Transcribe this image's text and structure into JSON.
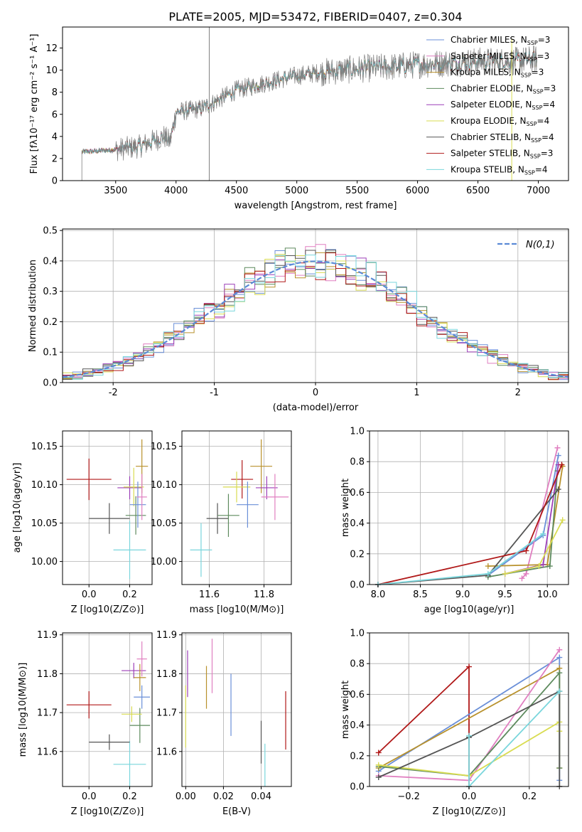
{
  "figure_title": "PLATE=2005, MJD=53472, FIBERID=0407, z=0.304",
  "series": [
    {
      "name": "Chabrier MILES",
      "nssp": "3",
      "color": "#6a8fd8"
    },
    {
      "name": "Salpeter MILES",
      "nssp": "3",
      "color": "#e07fc0"
    },
    {
      "name": "Kroupa MILES",
      "nssp": "3",
      "color": "#b8912c"
    },
    {
      "name": "Chabrier ELODIE",
      "nssp": "3",
      "color": "#5d8a5d"
    },
    {
      "name": "Salpeter ELODIE",
      "nssp": "4",
      "color": "#9c3fb8"
    },
    {
      "name": "Kroupa ELODIE",
      "nssp": "4",
      "color": "#d9dc52"
    },
    {
      "name": "Chabrier STELIB",
      "nssp": "4",
      "color": "#555555"
    },
    {
      "name": "Salpeter STELIB",
      "nssp": "3",
      "color": "#b01818"
    },
    {
      "name": "Kroupa STELIB",
      "nssp": "4",
      "color": "#7ad6dc"
    }
  ],
  "chart_data": [
    {
      "id": "spectrum",
      "type": "line",
      "xlabel": "wavelength [Angstrom, rest frame]",
      "ylabel": "Flux [fλ10⁻¹⁷ erg cm⁻² s⁻¹ A⁻¹]",
      "xlim": [
        3060,
        7250
      ],
      "ylim": [
        0,
        13.9
      ],
      "xticks": [
        3500,
        4000,
        4500,
        5000,
        5500,
        6000,
        6500,
        7000
      ],
      "yticks": [
        0,
        2,
        4,
        6,
        8,
        10,
        12
      ],
      "grid": false,
      "legend": "right",
      "x_range_data": [
        3220,
        6990
      ],
      "continuum": [
        [
          3220,
          2.6
        ],
        [
          3500,
          2.8
        ],
        [
          3700,
          3.1
        ],
        [
          3900,
          4.0
        ],
        [
          3950,
          3.5
        ],
        [
          4000,
          6.2
        ],
        [
          4200,
          6.5
        ],
        [
          4300,
          7.0
        ],
        [
          4500,
          8.2
        ],
        [
          4800,
          9.0
        ],
        [
          5000,
          9.5
        ],
        [
          5200,
          9.8
        ],
        [
          5500,
          10.1
        ],
        [
          5800,
          10.3
        ],
        [
          6000,
          10.5
        ],
        [
          6500,
          10.8
        ],
        [
          6800,
          10.8
        ],
        [
          6990,
          11.0
        ]
      ],
      "spikes": [
        [
          4275,
          13.9
        ],
        [
          6780,
          12.8
        ],
        [
          6790,
          0
        ]
      ]
    },
    {
      "id": "residuals",
      "type": "bar",
      "xlabel": "(data-model)/error",
      "ylabel": "Normed distribution",
      "xlim": [
        -2.5,
        2.5
      ],
      "ylim": [
        0,
        0.505
      ],
      "xticks": [
        -2,
        -1,
        0,
        1,
        2
      ],
      "yticks": [
        0,
        0.1,
        0.2,
        0.3,
        0.4,
        0.5
      ],
      "grid": true,
      "legend": "top-right",
      "legend_label": "N(0,1)",
      "bin_width": 0.1
    },
    {
      "id": "age_vs_Z",
      "type": "scatter",
      "xlabel": "Z [log10(Z/Z⊙)]",
      "ylabel": "age  [log10(age/yr)]",
      "xlim": [
        -0.13,
        0.31
      ],
      "ylim": [
        9.97,
        10.17
      ],
      "xticks": [
        0.0,
        0.2
      ],
      "yticks": [
        10.0,
        10.05,
        10.1,
        10.15
      ],
      "points": [
        {
          "s": 7,
          "x": 0.0,
          "y": 10.107,
          "xe": 0.11,
          "ye": 0.027
        },
        {
          "s": 8,
          "x": 0.2,
          "y": 10.015,
          "xe": 0.08,
          "ye": 0.038
        },
        {
          "s": 6,
          "x": 0.1,
          "y": 10.056,
          "xe": 0.1,
          "ye": 0.02
        },
        {
          "s": 4,
          "x": 0.2,
          "y": 10.096,
          "xe": 0.06,
          "ye": 0.015
        },
        {
          "s": 3,
          "x": 0.23,
          "y": 10.06,
          "xe": 0.05,
          "ye": 0.025
        },
        {
          "s": 5,
          "x": 0.22,
          "y": 10.097,
          "xe": 0.05,
          "ye": 0.025
        },
        {
          "s": 0,
          "x": 0.24,
          "y": 10.074,
          "xe": 0.04,
          "ye": 0.03
        },
        {
          "s": 2,
          "x": 0.26,
          "y": 10.124,
          "xe": 0.03,
          "ye": 0.035
        },
        {
          "s": 1,
          "x": 0.26,
          "y": 10.084,
          "xe": 0.025,
          "ye": 0.03
        }
      ]
    },
    {
      "id": "age_vs_mass",
      "type": "scatter",
      "xlabel": "mass [log10(M/M⊙)]",
      "ylabel": "",
      "xlim": [
        11.5,
        11.9
      ],
      "ylim": [
        9.97,
        10.17
      ],
      "xticks": [
        11.6,
        11.8
      ],
      "yticks": [
        10.0,
        10.05,
        10.1,
        10.15
      ],
      "points": [
        {
          "s": 8,
          "x": 11.57,
          "y": 10.015,
          "xe": 0.04,
          "ye": 0.035
        },
        {
          "s": 6,
          "x": 11.63,
          "y": 10.056,
          "xe": 0.04,
          "ye": 0.02
        },
        {
          "s": 3,
          "x": 11.67,
          "y": 10.06,
          "xe": 0.04,
          "ye": 0.028
        },
        {
          "s": 7,
          "x": 11.72,
          "y": 10.107,
          "xe": 0.04,
          "ye": 0.025
        },
        {
          "s": 5,
          "x": 11.7,
          "y": 10.097,
          "xe": 0.05,
          "ye": 0.02
        },
        {
          "s": 0,
          "x": 11.74,
          "y": 10.074,
          "xe": 0.04,
          "ye": 0.03
        },
        {
          "s": 2,
          "x": 11.79,
          "y": 10.124,
          "xe": 0.04,
          "ye": 0.035
        },
        {
          "s": 4,
          "x": 11.81,
          "y": 10.096,
          "xe": 0.04,
          "ye": 0.015
        },
        {
          "s": 1,
          "x": 11.84,
          "y": 10.084,
          "xe": 0.05,
          "ye": 0.03
        }
      ]
    },
    {
      "id": "weight_vs_age",
      "type": "line",
      "xlabel": "age  [log10(age/yr)]",
      "ylabel": "mass weight",
      "xlim": [
        7.9,
        10.25
      ],
      "ylim": [
        0,
        1
      ],
      "xticks": [
        8.0,
        8.5,
        9.0,
        9.5,
        10.0
      ],
      "yticks": [
        0.0,
        0.2,
        0.4,
        0.6,
        0.8,
        1.0
      ],
      "lines": [
        {
          "s": 0,
          "x": [
            9.3,
            9.95,
            10.13
          ],
          "y": [
            0.06,
            0.32,
            0.84
          ]
        },
        {
          "s": 1,
          "x": 9.7,
          "y2": 0,
          "x_list": [
            9.7,
            9.75,
            10.12
          ],
          "y_list": [
            0.04,
            0.07,
            0.89
          ]
        },
        {
          "s": 2,
          "x_list": [
            9.3,
            10.0,
            10.18
          ],
          "y_list": [
            0.12,
            0.13,
            0.77
          ]
        },
        {
          "s": 3,
          "x_list": [
            9.3,
            10.03,
            10.12
          ],
          "y_list": [
            0.05,
            0.12,
            0.74
          ]
        },
        {
          "s": 4,
          "x_list": [
            9.5,
            9.95,
            10.13
          ],
          "y_list": [
            0.07,
            0.13,
            0.78
          ]
        },
        {
          "s": 5,
          "x_list": [
            9.5,
            9.9,
            10.18
          ],
          "y_list": [
            0.07,
            0.12,
            0.42
          ]
        },
        {
          "s": 6,
          "x_list": [
            8.0,
            9.3,
            10.13
          ],
          "y_list": [
            0.0,
            0.06,
            0.62
          ]
        },
        {
          "s": 7,
          "x_list": [
            8.0,
            9.75,
            10.17
          ],
          "y_list": [
            0.0,
            0.22,
            0.78
          ]
        },
        {
          "s": 8,
          "x_list": [
            8.0,
            9.3,
            9.95
          ],
          "y_list": [
            0.0,
            0.07,
            0.33
          ]
        }
      ]
    },
    {
      "id": "mass_vs_Z",
      "type": "scatter",
      "xlabel": "Z [log10(Z/Z⊙)]",
      "ylabel": "mass [log10(M/M⊙)]",
      "xlim": [
        -0.13,
        0.31
      ],
      "ylim": [
        11.51,
        11.905
      ],
      "xticks": [
        0.0,
        0.2
      ],
      "yticks": [
        11.6,
        11.7,
        11.8,
        11.9
      ],
      "points": [
        {
          "s": 7,
          "x": 0.0,
          "y": 11.72,
          "xe": 0.11,
          "ye": 0.035
        },
        {
          "s": 8,
          "x": 0.2,
          "y": 11.567,
          "xe": 0.08,
          "ye": 0.06
        },
        {
          "s": 6,
          "x": 0.1,
          "y": 11.624,
          "xe": 0.1,
          "ye": 0.02
        },
        {
          "s": 4,
          "x": 0.22,
          "y": 11.808,
          "xe": 0.06,
          "ye": 0.02
        },
        {
          "s": 3,
          "x": 0.25,
          "y": 11.667,
          "xe": 0.05,
          "ye": 0.045
        },
        {
          "s": 5,
          "x": 0.21,
          "y": 11.696,
          "xe": 0.05,
          "ye": 0.02
        },
        {
          "s": 0,
          "x": 0.26,
          "y": 11.74,
          "xe": 0.04,
          "ye": 0.03
        },
        {
          "s": 2,
          "x": 0.25,
          "y": 11.79,
          "xe": 0.03,
          "ye": 0.035
        },
        {
          "s": 1,
          "x": 0.26,
          "y": 11.838,
          "xe": 0.025,
          "ye": 0.045
        }
      ]
    },
    {
      "id": "mass_vs_ebv",
      "type": "scatter",
      "xlabel": "E(B-V)",
      "ylabel": "",
      "xlim": [
        -0.002,
        0.056
      ],
      "ylim": [
        11.51,
        11.905
      ],
      "xticks": [
        0.0,
        0.02,
        0.04
      ],
      "yticks": [
        11.6,
        11.7,
        11.8,
        11.9
      ],
      "points": [
        {
          "s": 5,
          "x": 0.0,
          "y": 11.69,
          "ye": 0.08
        },
        {
          "s": 4,
          "x": 0.001,
          "y": 11.8,
          "ye": 0.06
        },
        {
          "s": 2,
          "x": 0.011,
          "y": 11.765,
          "ye": 0.055
        },
        {
          "s": 1,
          "x": 0.014,
          "y": 11.82,
          "ye": 0.07
        },
        {
          "s": 0,
          "x": 0.024,
          "y": 11.72,
          "ye": 0.08
        },
        {
          "s": 6,
          "x": 0.04,
          "y": 11.624,
          "ye": 0.055
        },
        {
          "s": 8,
          "x": 0.042,
          "y": 11.565,
          "ye": 0.055
        },
        {
          "s": 7,
          "x": 0.053,
          "y": 11.68,
          "ye": 0.075
        }
      ]
    },
    {
      "id": "weight_vs_Z",
      "type": "line",
      "xlabel": "Z [log10(Z/Z⊙)]",
      "ylabel": "mass weight",
      "xlim": [
        -0.33,
        0.33
      ],
      "ylim": [
        0,
        1
      ],
      "xticks": [
        -0.2,
        0.0,
        0.2
      ],
      "yticks": [
        0.0,
        0.2,
        0.4,
        0.6,
        0.8,
        1.0
      ],
      "lines": [
        {
          "s": 7,
          "x_list": [
            -0.3,
            0.0,
            0.0
          ],
          "y_list": [
            0.22,
            0.78,
            0.0
          ]
        },
        {
          "s": 0,
          "x_list": [
            -0.3,
            0.3,
            0.3
          ],
          "y_list": [
            0.1,
            0.84,
            0.04
          ]
        },
        {
          "s": 2,
          "x_list": [
            -0.3,
            0.3,
            0.3
          ],
          "y_list": [
            0.12,
            0.77,
            0.12
          ]
        },
        {
          "s": 1,
          "x_list": [
            -0.3,
            0.0,
            0.3
          ],
          "y_list": [
            0.07,
            0.04,
            0.89
          ]
        },
        {
          "s": 3,
          "x_list": [
            -0.3,
            0.0,
            0.3,
            0.3
          ],
          "y_list": [
            0.13,
            0.07,
            0.74,
            0.12
          ]
        },
        {
          "s": 5,
          "x_list": [
            -0.3,
            0.0,
            0.3,
            0.3
          ],
          "y_list": [
            0.14,
            0.07,
            0.42,
            0.36
          ]
        },
        {
          "s": 6,
          "x_list": [
            -0.3,
            0.0,
            0.3,
            0.3
          ],
          "y_list": [
            0.06,
            0.32,
            0.62,
            0.0
          ]
        },
        {
          "s": 8,
          "x_list": [
            0.0,
            0.0,
            0.3
          ],
          "y_list": [
            0.33,
            0.0,
            0.62
          ]
        }
      ]
    }
  ]
}
